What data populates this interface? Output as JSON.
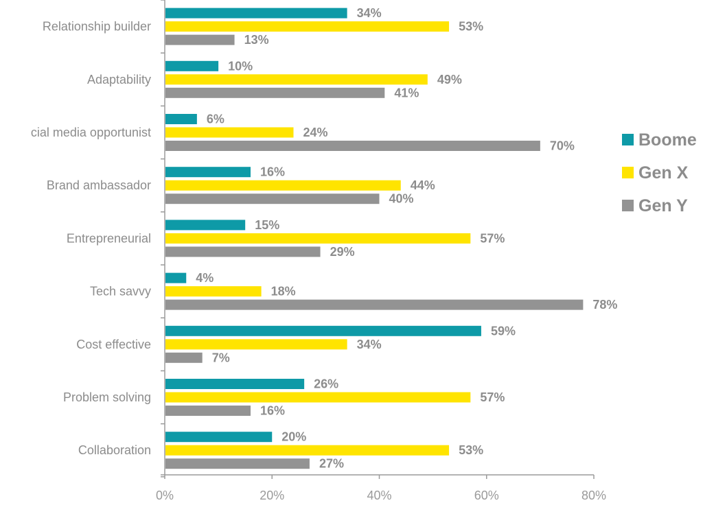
{
  "chart_data": {
    "type": "bar",
    "orientation": "horizontal",
    "title": "",
    "xlabel": "",
    "ylabel": "",
    "xlim": [
      0,
      80
    ],
    "x_ticks": [
      "0%",
      "20%",
      "40%",
      "60%",
      "80%"
    ],
    "x_tick_values": [
      0,
      20,
      40,
      60,
      80
    ],
    "grid": false,
    "legend_position": "right",
    "categories": [
      "Relationship builder",
      "Adaptability",
      "Social media opportunist",
      "Brand ambassador",
      "Entrepreneurial",
      "Tech savvy",
      "Cost effective",
      "Problem solving",
      "Collaboration"
    ],
    "category_labels_visible": [
      "Relationship builder",
      "Adaptability",
      "cial media opportunist",
      "Brand ambassador",
      "Entrepreneurial",
      "Tech savvy",
      "Cost effective",
      "Problem solving",
      "Collaboration"
    ],
    "series": [
      {
        "name": "Boomers",
        "legend_visible": "Boome",
        "color": "#0e9aa7",
        "values": [
          34,
          10,
          6,
          16,
          15,
          4,
          59,
          26,
          20
        ]
      },
      {
        "name": "Gen X",
        "legend_visible": "Gen X",
        "color": "#ffe400",
        "values": [
          53,
          49,
          24,
          44,
          57,
          18,
          34,
          57,
          53
        ]
      },
      {
        "name": "Gen Y",
        "legend_visible": "Gen Y",
        "color": "#939393",
        "values": [
          13,
          41,
          70,
          40,
          29,
          78,
          7,
          16,
          27
        ]
      }
    ],
    "value_format": "{v}%"
  }
}
